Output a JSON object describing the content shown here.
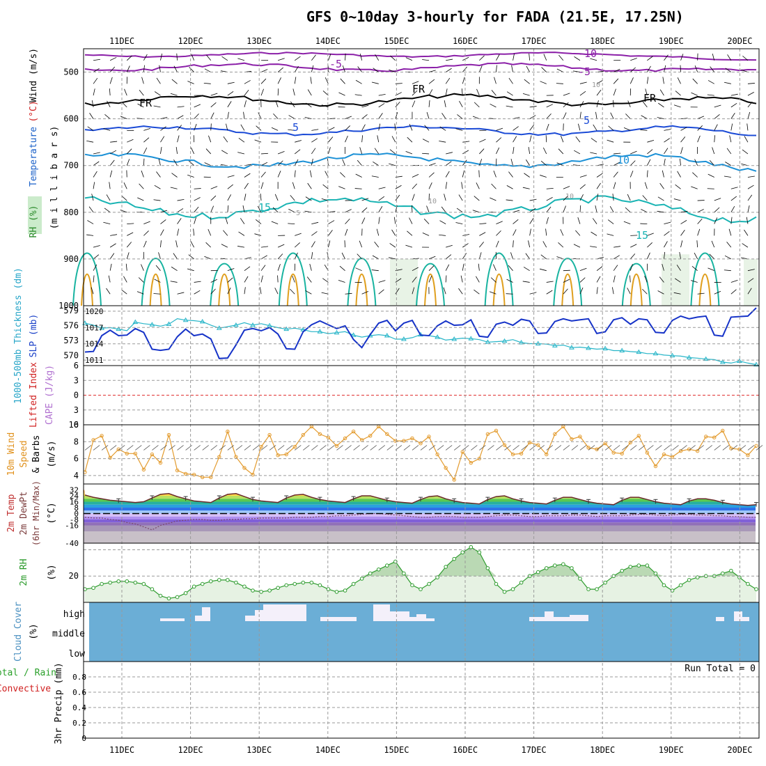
{
  "title": "GFS 0~10day 3-hourly for FADA (21.5E, 17.25N)",
  "colors": {
    "text": "#000000",
    "grid": "#999999",
    "cloud_bg": "#6baed6",
    "cloud_high": "#f4f0fa",
    "rh_fill": "#e6f2e3",
    "rh_fill_dark": "#a6cf9f",
    "rh_line": "#2e9c2e",
    "wind_line": "#e39b2e",
    "slp": "#1633c8",
    "thick": "#26b5c8",
    "li_zero": "#e03030",
    "barb": "#000000"
  },
  "chart_data": [
    {
      "type": "line",
      "id": "upper-air",
      "title": "Temperature (°C) / Wind (m/s) / RH (%)",
      "ylabel": "millibars",
      "ylabel_parts": [
        "RH (%)",
        "Temperature",
        " (°C)",
        "Wind (m/s)",
        "(m i l l i b a r s)"
      ],
      "ylim": [
        1000,
        450
      ],
      "yticks": [
        500,
        600,
        700,
        800,
        900,
        1000
      ],
      "x_categories": [
        "11DEC",
        "12DEC",
        "13DEC",
        "14DEC",
        "15DEC",
        "16DEC",
        "17DEC",
        "18DEC",
        "19DEC",
        "20DEC"
      ],
      "isotherms": [
        {
          "label": "-10",
          "color": "#8b1fa8",
          "level": 463,
          "amp": 4
        },
        {
          "label": "-5",
          "color": "#8b1fa8",
          "level": 490,
          "amp": 7
        },
        {
          "label": "FR",
          "color": "#000000",
          "level": 560,
          "amp": 10
        },
        {
          "label": "5",
          "color": "#1a4ad6",
          "level": 625,
          "amp": 8
        },
        {
          "label": "10",
          "color": "#1a90d6",
          "level": 690,
          "amp": 12
        },
        {
          "label": "15",
          "color": "#18b3b3",
          "level": 790,
          "amp": 18
        }
      ],
      "contour_labels": [
        "-10",
        "-5",
        "-5",
        "FR",
        "FR",
        "FR",
        "5",
        "5",
        "10",
        "15",
        "15",
        "10",
        "10",
        "10",
        "5"
      ]
    },
    {
      "type": "line",
      "id": "slp-thickness",
      "left_label": "1000-500mb Thickness (dm)",
      "right_label": "SLP (mb)",
      "left_ticks": [
        570,
        573,
        576,
        579
      ],
      "right_ticks": [
        1011,
        1014,
        1017,
        1020
      ],
      "thickness_dm": [
        576.5,
        576.1,
        575.5,
        575.6,
        575.3,
        575.0,
        576.7,
        576.4,
        576.2,
        575.9,
        576.3,
        577.4,
        577.1,
        577.0,
        576.8,
        576.1,
        575.5,
        575.8,
        576.1,
        576.6,
        576.1,
        576.4,
        576.0,
        575.6,
        575.3,
        575.5,
        575.2,
        574.8,
        574.8,
        574.4,
        574.6,
        574.8,
        574.1,
        573.7,
        574.0,
        574.2,
        574.0,
        573.3,
        573.3,
        573.6,
        574.2,
        574.0,
        573.7,
        573.1,
        573.3,
        573.5,
        573.4,
        573.2,
        572.7,
        572.8,
        572.9,
        573.2,
        572.6,
        572.4,
        572.4,
        572.3,
        572.0,
        572.1,
        571.6,
        571.7,
        571.5,
        571.3,
        571.4,
        571.0,
        571.0,
        570.8,
        570.7,
        570.4,
        570.4,
        570.1,
        570.0,
        569.9,
        569.6,
        569.5,
        569.3,
        569.2,
        568.7,
        568.5,
        568.9,
        568.5,
        568.2
      ],
      "slp_mb": [
        1012.5,
        1012.6,
        1015.5,
        1016.5,
        1015.5,
        1015.6,
        1016.8,
        1016.1,
        1013.0,
        1012.8,
        1013.0,
        1015.3,
        1016.7,
        1015.5,
        1015.8,
        1014.9,
        1011.3,
        1011.4,
        1013.8,
        1016.5,
        1016.8,
        1016.4,
        1017.0,
        1015.8,
        1013.1,
        1013.0,
        1016.2,
        1017.5,
        1018.2,
        1017.5,
        1016.8,
        1017.3,
        1014.8,
        1013.3,
        1015.7,
        1017.8,
        1018.3,
        1016.4,
        1017.8,
        1018.3,
        1015.6,
        1015.5,
        1017.3,
        1018.2,
        1017.4,
        1017.5,
        1018.4,
        1015.4,
        1015.2,
        1017.6,
        1018.0,
        1017.4,
        1018.5,
        1018.2,
        1015.9,
        1016.0,
        1018.1,
        1018.6,
        1018.2,
        1018.4,
        1018.6,
        1015.9,
        1016.2,
        1018.4,
        1018.8,
        1017.6,
        1018.6,
        1018.4,
        1016.1,
        1016.0,
        1018.3,
        1019.1,
        1018.6,
        1018.9,
        1019.1,
        1015.6,
        1015.4,
        1018.9,
        1019.0,
        1019.1,
        1020.6
      ]
    },
    {
      "type": "line",
      "id": "li-cape",
      "left_label": "Lifted Index",
      "right_label": "CAPE (J/kg)",
      "ticks": [
        6,
        3,
        0,
        -3,
        -6
      ],
      "ylim": [
        -6,
        6
      ]
    },
    {
      "type": "line",
      "id": "wind10m",
      "label": "10m Wind Speed & Barbs",
      "unit": "(m/s)",
      "ylim": [
        3,
        10
      ],
      "yticks": [
        4,
        6,
        8,
        10
      ],
      "values": [
        4.4,
        8.2,
        8.7,
        6.1,
        7.1,
        6.6,
        6.6,
        4.7,
        6.5,
        5.5,
        8.8,
        4.6,
        4.2,
        4.1,
        3.8,
        3.8,
        6.2,
        9.2,
        6.2,
        4.9,
        4.1,
        7.4,
        8.8,
        6.4,
        6.5,
        7.4,
        8.8,
        9.8,
        8.9,
        8.5,
        7.5,
        8.4,
        9.2,
        8.2,
        8.7,
        9.8,
        8.9,
        8.1,
        8.1,
        8.4,
        7.8,
        8.6,
        6.5,
        4.9,
        3.5,
        6.8,
        5.5,
        6.0,
        8.9,
        9.3,
        7.6,
        6.5,
        6.6,
        7.9,
        7.6,
        6.5,
        8.9,
        9.8,
        8.3,
        8.6,
        7.3,
        7.1,
        7.8,
        6.7,
        6.6,
        7.9,
        8.7,
        6.7,
        5.1,
        6.5,
        6.2,
        6.9,
        7.1,
        6.9,
        8.6,
        8.5,
        9.3,
        7.2,
        7.1,
        6.4,
        7.5
      ]
    },
    {
      "type": "area",
      "id": "temp2m",
      "label_lines": [
        "2m Temp",
        "2m DewPt",
        "(6hr Min/Max)"
      ],
      "unit": "(°C)",
      "ylim": [
        -40,
        40
      ],
      "yticks": [
        32,
        24,
        16,
        8,
        0,
        -8,
        -16,
        -40
      ],
      "ytick_labels": [
        "32",
        "24",
        "16",
        "8",
        "0",
        "-8",
        "-16",
        "-40"
      ],
      "temp": [
        25,
        22,
        20,
        18,
        17,
        16,
        15,
        16,
        21,
        26,
        27,
        23,
        20,
        17,
        16,
        15,
        21,
        26,
        27,
        23,
        19,
        17,
        16,
        15,
        21,
        25,
        26,
        22,
        19,
        17,
        16,
        15,
        20,
        24,
        24,
        21,
        18,
        16,
        15,
        14,
        19,
        23,
        24,
        20,
        17,
        15,
        14,
        13,
        19,
        23,
        24,
        20,
        17,
        15,
        14,
        13,
        18,
        22,
        22,
        19,
        16,
        14,
        13,
        12,
        18,
        22,
        22,
        19,
        16,
        14,
        13,
        12,
        17,
        20,
        20,
        18,
        15,
        13,
        12,
        11,
        12
      ],
      "dewpt": [
        -5,
        -6,
        -6,
        -8,
        -9,
        -12,
        -14,
        -18,
        -22,
        -16,
        -13,
        -10,
        -9,
        -8,
        -8,
        -9,
        -9,
        -8,
        -8,
        -7,
        -7,
        -6,
        -6,
        -6,
        -6,
        -5,
        -5,
        -5,
        -4,
        -4,
        -3,
        -3,
        -2,
        -1,
        0,
        0,
        -1,
        -2,
        -3,
        -4,
        -5,
        -5,
        -4,
        -4,
        -4,
        -5,
        -5,
        -5,
        -4,
        -3,
        -2,
        -2,
        -3,
        -4,
        -4,
        -3,
        -3,
        -3,
        -2,
        -2,
        -3,
        -4,
        -3,
        -3,
        -3,
        -2,
        -1,
        -1,
        -2,
        -3,
        -2,
        -1,
        -1,
        -2,
        -2,
        -3,
        -3,
        -4,
        -4,
        -5,
        -5
      ]
    },
    {
      "type": "area",
      "id": "rh2m",
      "label": "2m RH",
      "unit": "(%)",
      "ylim": [
        0,
        45
      ],
      "yticks": [
        20
      ],
      "values": [
        10,
        11,
        14,
        15,
        16,
        16,
        15,
        14,
        10,
        5,
        3,
        4,
        7,
        12,
        14,
        16,
        17,
        17,
        15,
        12,
        9,
        8,
        9,
        11,
        13,
        14,
        15,
        15,
        13,
        10,
        8,
        9,
        14,
        18,
        22,
        25,
        28,
        31,
        22,
        13,
        10,
        14,
        19,
        27,
        33,
        38,
        42,
        38,
        26,
        14,
        8,
        10,
        15,
        20,
        23,
        26,
        28,
        29,
        26,
        18,
        10,
        10,
        15,
        20,
        24,
        27,
        28,
        28,
        22,
        13,
        9,
        13,
        17,
        19,
        20,
        20,
        22,
        24,
        19,
        14,
        10
      ]
    },
    {
      "type": "heatmap",
      "id": "cloud",
      "label": "Cloud Cover",
      "unit": "(%)",
      "levels": [
        "high",
        "middle",
        "low"
      ]
    },
    {
      "type": "bar",
      "id": "precip",
      "label_lines": [
        "Total / Rain",
        "Convective"
      ],
      "ylabel": "3hr Precip (mm)",
      "yticks": [
        0,
        0.2,
        0.4,
        0.6,
        0.8
      ],
      "ylim": [
        0,
        1
      ],
      "run_total": "Run Total = 0",
      "values": []
    }
  ],
  "x_axis": {
    "labels": [
      "11DEC",
      "12DEC",
      "13DEC",
      "14DEC",
      "15DEC",
      "16DEC",
      "17DEC",
      "18DEC",
      "19DEC",
      "20DEC"
    ]
  }
}
